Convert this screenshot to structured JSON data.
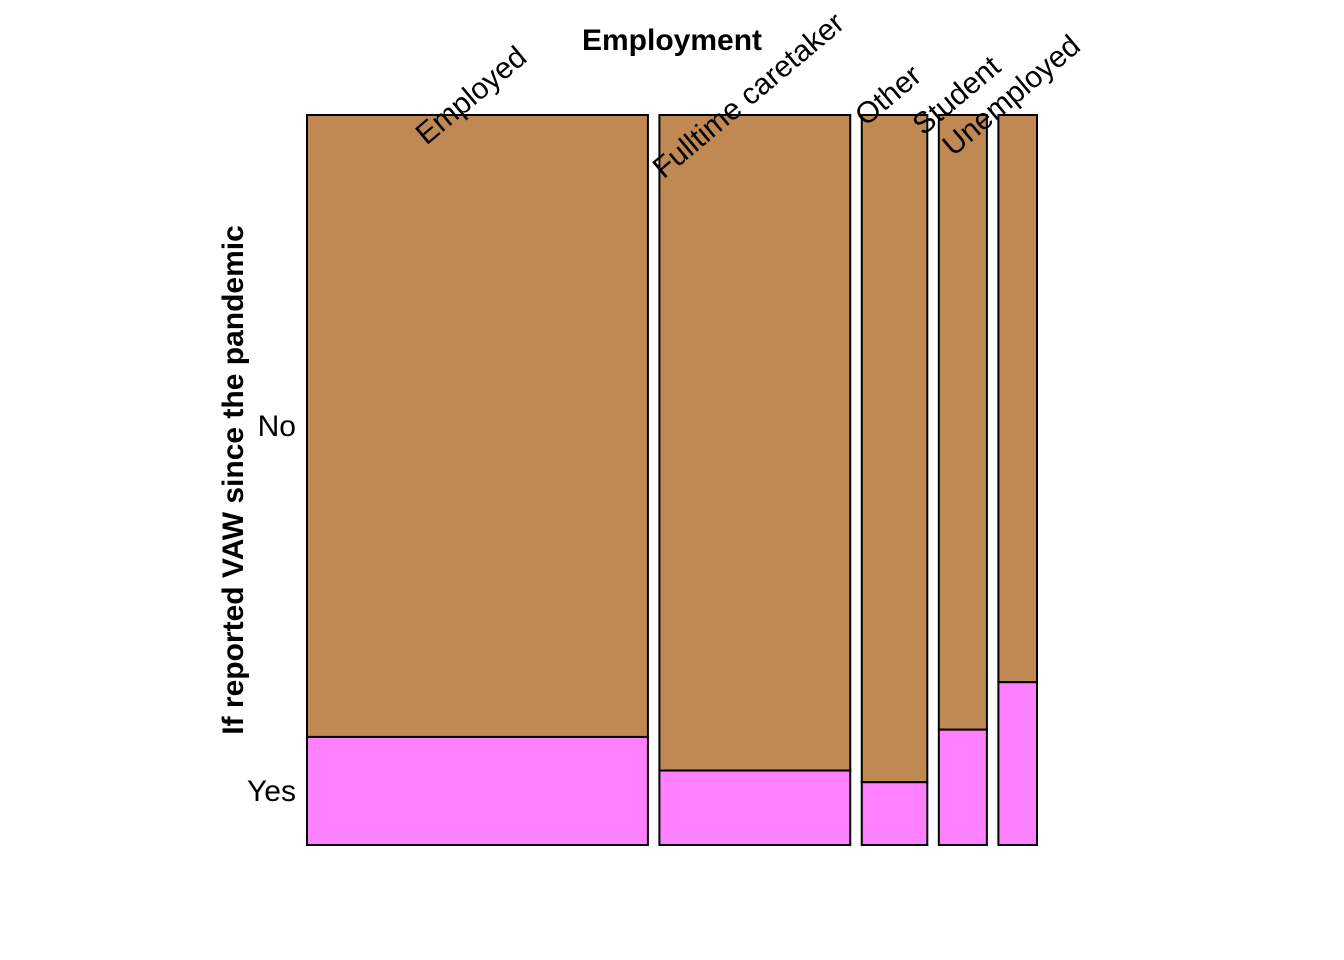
{
  "chart_data": {
    "type": "mosaic",
    "xlabel": "Employment",
    "ylabel": "If reported VAW since the pandemic",
    "categories": [
      "Employed",
      "Fulltime caretaker",
      "Other",
      "Student",
      "Unemployed"
    ],
    "category_shares": [
      0.468,
      0.262,
      0.09,
      0.066,
      0.053
    ],
    "levels": [
      "No",
      "Yes"
    ],
    "proportions": {
      "No": [
        0.852,
        0.898,
        0.914,
        0.842,
        0.777
      ],
      "Yes": [
        0.148,
        0.102,
        0.086,
        0.158,
        0.223
      ]
    },
    "colors": {
      "No": "#C08853",
      "Yes": "#FF80FF"
    },
    "grid": false,
    "legend": "none"
  }
}
